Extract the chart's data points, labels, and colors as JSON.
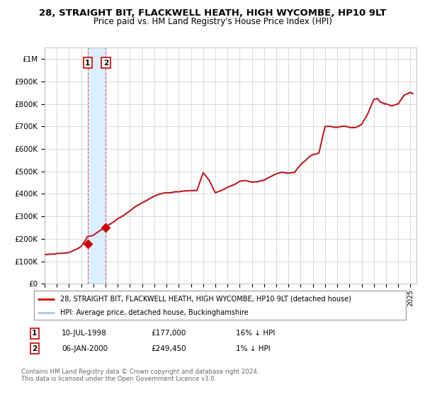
{
  "title": "28, STRAIGHT BIT, FLACKWELL HEATH, HIGH WYCOMBE, HP10 9LT",
  "subtitle": "Price paid vs. HM Land Registry's House Price Index (HPI)",
  "background_color": "#ffffff",
  "plot_bg_color": "#ffffff",
  "grid_color": "#cccccc",
  "sale1_date": 1998.53,
  "sale1_price": 177000,
  "sale1_hpi_note": "16% ↓ HPI",
  "sale1_date_str": "10-JUL-1998",
  "sale2_date": 2000.02,
  "sale2_price": 249450,
  "sale2_hpi_note": "1% ↓ HPI",
  "sale2_date_str": "06-JAN-2000",
  "hpi_line_color": "#aac8e8",
  "price_line_color": "#cc0000",
  "marker_color": "#cc0000",
  "vline1_color": "#cc0000",
  "vspan_color": "#ddeeff",
  "ylim_min": 0,
  "ylim_max": 1050000,
  "xmin": 1995.0,
  "xmax": 2025.5,
  "legend1": "28, STRAIGHT BIT, FLACKWELL HEATH, HIGH WYCOMBE, HP10 9LT (detached house)",
  "legend2": "HPI: Average price, detached house, Buckinghamshire",
  "footer": "Contains HM Land Registry data © Crown copyright and database right 2024.\nThis data is licensed under the Open Government Licence v3.0.",
  "yticks": [
    0,
    100000,
    200000,
    300000,
    400000,
    500000,
    600000,
    700000,
    800000,
    900000,
    1000000
  ],
  "ytick_labels": [
    "£0",
    "£100K",
    "£200K",
    "£300K",
    "£400K",
    "£500K",
    "£600K",
    "£700K",
    "£800K",
    "£900K",
    "£1M"
  ],
  "anchors": [
    [
      1995.0,
      130000
    ],
    [
      1995.5,
      132000
    ],
    [
      1996.0,
      135000
    ],
    [
      1996.5,
      137000
    ],
    [
      1997.0,
      140000
    ],
    [
      1997.5,
      150000
    ],
    [
      1998.0,
      165000
    ],
    [
      1998.53,
      210000
    ],
    [
      1999.0,
      215000
    ],
    [
      1999.5,
      235000
    ],
    [
      2000.02,
      252000
    ],
    [
      2000.5,
      270000
    ],
    [
      2001.0,
      290000
    ],
    [
      2001.5,
      305000
    ],
    [
      2002.0,
      325000
    ],
    [
      2002.5,
      345000
    ],
    [
      2003.0,
      360000
    ],
    [
      2003.5,
      375000
    ],
    [
      2004.0,
      390000
    ],
    [
      2004.5,
      400000
    ],
    [
      2005.0,
      405000
    ],
    [
      2005.5,
      408000
    ],
    [
      2006.0,
      410000
    ],
    [
      2006.5,
      413000
    ],
    [
      2007.0,
      415000
    ],
    [
      2007.5,
      415000
    ],
    [
      2008.0,
      495000
    ],
    [
      2008.5,
      460000
    ],
    [
      2009.0,
      405000
    ],
    [
      2009.5,
      415000
    ],
    [
      2010.0,
      430000
    ],
    [
      2010.5,
      440000
    ],
    [
      2011.0,
      455000
    ],
    [
      2011.5,
      458000
    ],
    [
      2012.0,
      452000
    ],
    [
      2012.5,
      455000
    ],
    [
      2013.0,
      462000
    ],
    [
      2013.5,
      475000
    ],
    [
      2014.0,
      490000
    ],
    [
      2014.5,
      495000
    ],
    [
      2015.0,
      492000
    ],
    [
      2015.5,
      495000
    ],
    [
      2016.0,
      530000
    ],
    [
      2016.5,
      555000
    ],
    [
      2017.0,
      575000
    ],
    [
      2017.5,
      580000
    ],
    [
      2018.0,
      700000
    ],
    [
      2018.5,
      700000
    ],
    [
      2019.0,
      695000
    ],
    [
      2019.5,
      700000
    ],
    [
      2020.0,
      695000
    ],
    [
      2020.5,
      695000
    ],
    [
      2021.0,
      710000
    ],
    [
      2021.5,
      755000
    ],
    [
      2022.0,
      820000
    ],
    [
      2022.3,
      825000
    ],
    [
      2022.5,
      810000
    ],
    [
      2023.0,
      800000
    ],
    [
      2023.5,
      790000
    ],
    [
      2024.0,
      800000
    ],
    [
      2024.5,
      840000
    ],
    [
      2025.0,
      850000
    ],
    [
      2025.2,
      845000
    ]
  ]
}
